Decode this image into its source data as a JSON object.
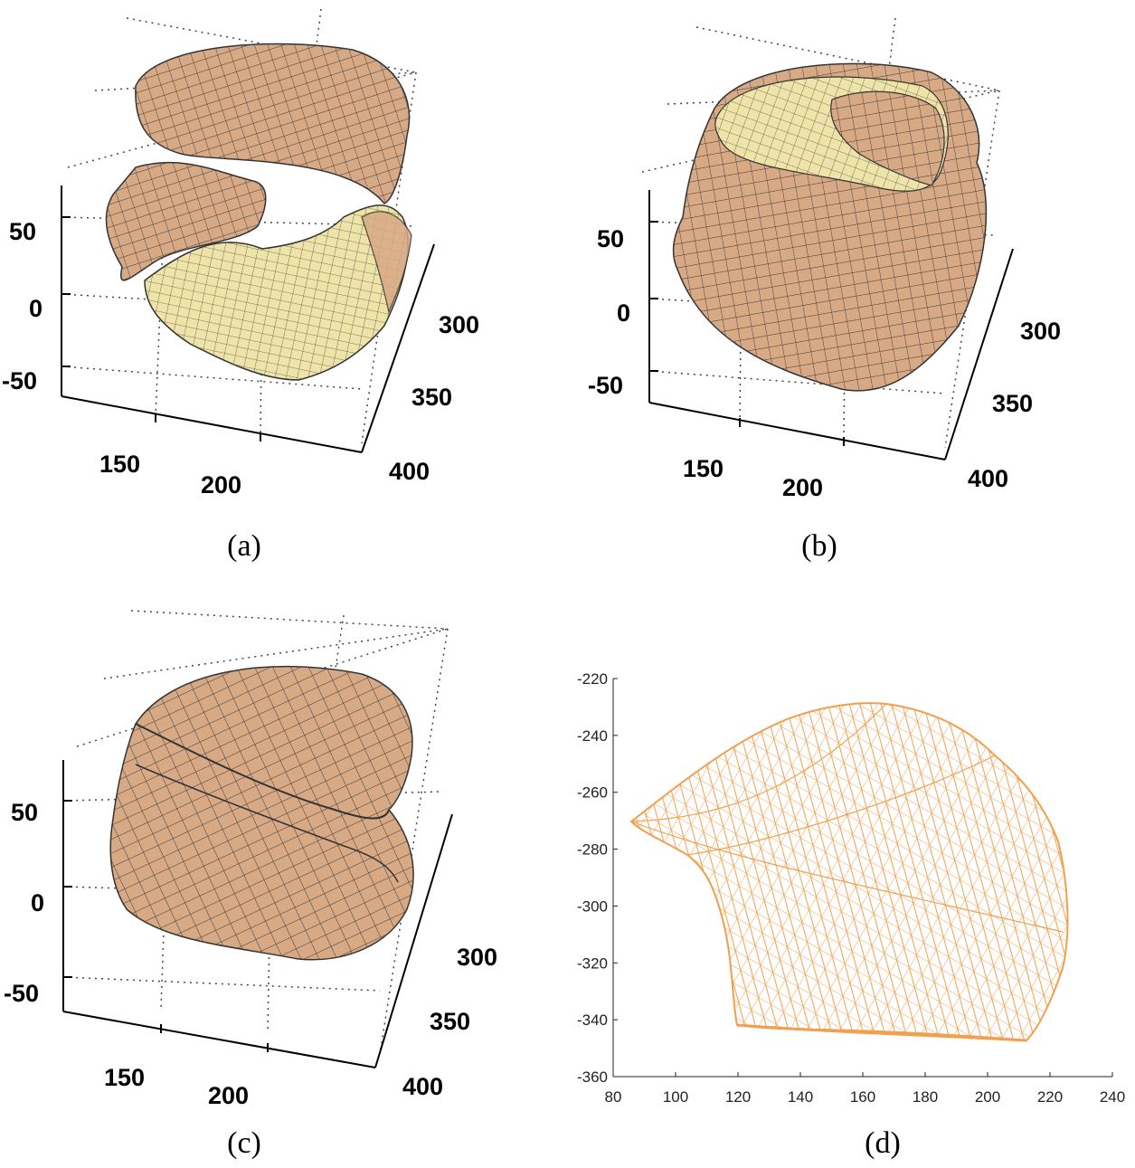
{
  "figure": {
    "panels": [
      {
        "caption": "(a)",
        "y_ticks": [
          "50",
          "0",
          "-50"
        ],
        "x_ticks": [
          "150",
          "200"
        ],
        "z_ticks": [
          "300",
          "350",
          "400"
        ]
      },
      {
        "caption": "(b)",
        "y_ticks": [
          "50",
          "0",
          "-50"
        ],
        "x_ticks": [
          "150",
          "200"
        ],
        "z_ticks": [
          "300",
          "350",
          "400"
        ]
      },
      {
        "caption": "(c)",
        "y_ticks": [
          "50",
          "0",
          "-50"
        ],
        "x_ticks": [
          "150",
          "200"
        ],
        "z_ticks": [
          "300",
          "350",
          "400"
        ]
      },
      {
        "caption": "(d)",
        "y_ticks": [
          "-220",
          "-240",
          "-260",
          "-280",
          "-300",
          "-320",
          "-340",
          "-360"
        ],
        "x_ticks": [
          "80",
          "100",
          "120",
          "140",
          "160",
          "180",
          "200",
          "220",
          "240"
        ]
      }
    ],
    "colors": {
      "surface": "#d8a985",
      "inner": "#efe4a8",
      "mesh": "#3a3a3a",
      "wire": "#f0a050"
    }
  }
}
